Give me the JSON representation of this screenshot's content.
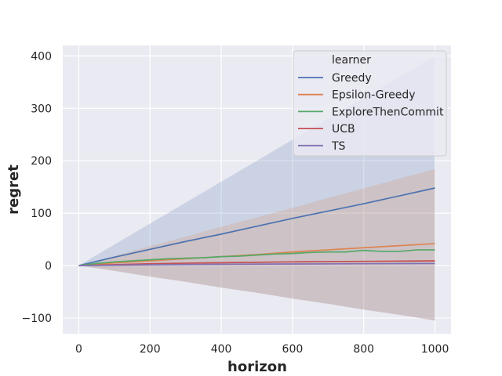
{
  "chart_data": {
    "type": "line",
    "title": "",
    "xlabel": "horizon",
    "ylabel": "regret",
    "xlim": [
      -45,
      1045
    ],
    "ylim": [
      -130,
      420
    ],
    "xticks": [
      0,
      200,
      400,
      600,
      800,
      1000
    ],
    "yticks": [
      -100,
      0,
      100,
      200,
      300,
      400
    ],
    "xtick_labels": [
      "0",
      "200",
      "400",
      "600",
      "800",
      "1000"
    ],
    "ytick_labels": [
      "−100",
      "0",
      "100",
      "200",
      "300",
      "400"
    ],
    "grid": true,
    "legend": {
      "title": "learner",
      "placement": "top-right"
    },
    "series": [
      {
        "name": "Greedy",
        "color": "#4c72b0",
        "x": [
          0,
          100,
          200,
          300,
          400,
          500,
          600,
          700,
          800,
          900,
          1000
        ],
        "y": [
          0,
          16,
          31,
          46,
          60,
          75,
          90,
          104,
          118,
          133,
          148
        ],
        "band_upper": [
          0,
          40,
          80,
          120,
          160,
          200,
          240,
          280,
          320,
          360,
          398
        ],
        "band_lower": [
          0,
          -10,
          -21,
          -31,
          -42,
          -52,
          -63,
          -73,
          -84,
          -94,
          -105
        ]
      },
      {
        "name": "Epsilon-Greedy",
        "color": "#dd8452",
        "x": [
          0,
          100,
          200,
          300,
          400,
          500,
          600,
          700,
          800,
          900,
          1000
        ],
        "y": [
          0,
          5,
          9,
          13,
          17,
          21,
          26,
          30,
          34,
          38,
          42
        ],
        "band_upper": [
          0,
          18,
          37,
          55,
          74,
          92,
          110,
          129,
          147,
          166,
          184
        ],
        "band_lower": [
          0,
          -10,
          -21,
          -31,
          -42,
          -52,
          -63,
          -73,
          -84,
          -94,
          -105
        ]
      },
      {
        "name": "ExploreThenCommit",
        "color": "#55a868",
        "x": [
          0,
          50,
          100,
          150,
          200,
          250,
          300,
          350,
          400,
          450,
          500,
          550,
          600,
          650,
          700,
          750,
          800,
          850,
          900,
          950,
          1000
        ],
        "y": [
          0,
          4,
          7,
          9,
          11,
          13,
          14,
          15,
          17,
          18,
          20,
          22,
          23,
          25,
          26,
          26,
          29,
          27,
          27,
          30,
          30
        ]
      },
      {
        "name": "UCB",
        "color": "#c44e52",
        "x": [
          0,
          200,
          400,
          600,
          800,
          1000
        ],
        "y": [
          0,
          3.5,
          5.5,
          7,
          8,
          9
        ]
      },
      {
        "name": "TS",
        "color": "#8172b3",
        "x": [
          0,
          200,
          400,
          600,
          800,
          1000
        ],
        "y": [
          0,
          1.5,
          2.5,
          3,
          3.5,
          4
        ]
      }
    ]
  }
}
